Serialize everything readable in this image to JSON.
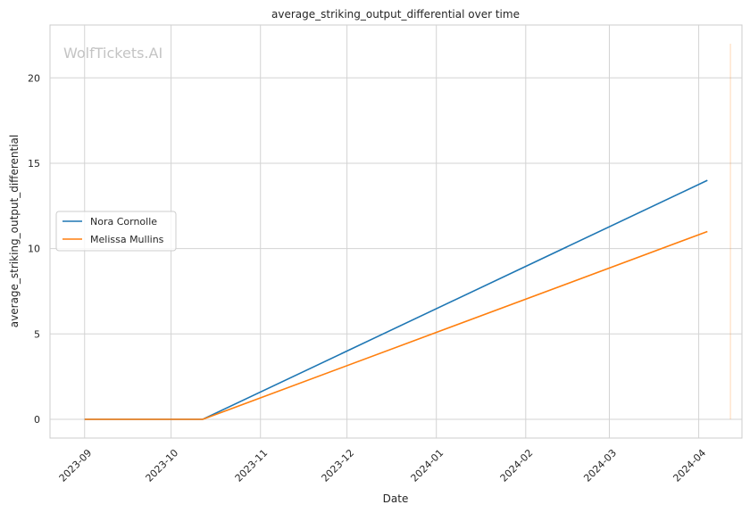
{
  "chart_data": {
    "type": "line",
    "title": "average_striking_output_differential over time",
    "xlabel": "Date",
    "ylabel": "average_striking_output_differential",
    "watermark": "WolfTickets.AI",
    "x_ticks": [
      "2023-09",
      "2023-10",
      "2023-11",
      "2023-12",
      "2024-01",
      "2024-02",
      "2024-03",
      "2024-04"
    ],
    "y_ticks": [
      0,
      5,
      10,
      15,
      20
    ],
    "xlim": [
      "2023-08-20",
      "2024-04-16"
    ],
    "ylim": [
      -1.1,
      23.1
    ],
    "grid": true,
    "legend_position": "center-left",
    "series": [
      {
        "name": "Nora Cornolle",
        "color": "#1f77b4",
        "points": [
          {
            "x": "2023-09-01",
            "y": 0
          },
          {
            "x": "2023-10-12",
            "y": 0
          },
          {
            "x": "2024-04-04",
            "y": 14
          }
        ]
      },
      {
        "name": "Melissa Mullins",
        "color": "#ff7f0e",
        "points": [
          {
            "x": "2023-09-01",
            "y": 0
          },
          {
            "x": "2023-10-12",
            "y": 0
          },
          {
            "x": "2024-04-04",
            "y": 11
          }
        ]
      }
    ],
    "vertical_line": {
      "x": "2024-04-12",
      "y_from": 0,
      "y_to": 22,
      "color": "#ff7f0e"
    }
  }
}
